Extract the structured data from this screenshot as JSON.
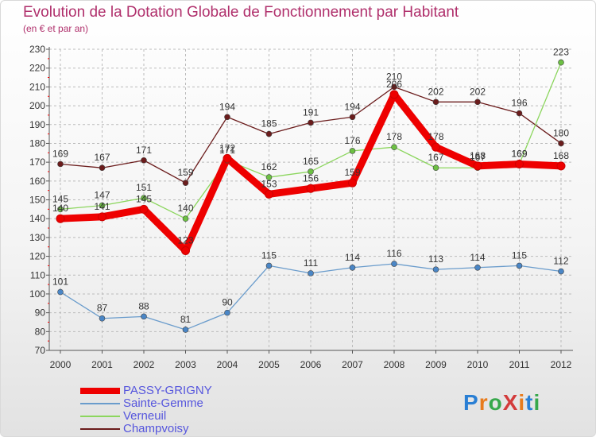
{
  "header": {
    "title": "Evolution de la Dotation Globale de Fonctionnement par Habitant",
    "subtitle": "(en € et par an)"
  },
  "logo": {
    "text": "ProXiti",
    "letter_colors": [
      "#2a7fd4",
      "#e87b1c",
      "#37a84b",
      "#d33b3b",
      "#e87b1c",
      "#2a7fd4",
      "#37a84b"
    ]
  },
  "colors": {
    "title": "#b0306c",
    "legend_text": "#5555dd",
    "axis": "#555555",
    "grid": "#bbbbbb",
    "tick_marks": "#ff0000"
  },
  "chart_data": {
    "type": "line",
    "title": "Evolution de la Dotation Globale de Fonctionnement par Habitant",
    "subtitle": "(en € et par an)",
    "xlabel": "",
    "ylabel": "",
    "x": [
      "2000",
      "2001",
      "2002",
      "2003",
      "2004",
      "2005",
      "2006",
      "2007",
      "2008",
      "2009",
      "2010",
      "2011",
      "2012"
    ],
    "ylim": [
      70,
      230
    ],
    "yticks": [
      70,
      80,
      90,
      100,
      110,
      120,
      130,
      140,
      150,
      160,
      170,
      180,
      190,
      200,
      210,
      220,
      230
    ],
    "grid": "horizontal dashed",
    "legend_position": "bottom-left",
    "series": [
      {
        "name": "Champvoisy",
        "color": "#6b1c1c",
        "marker": "#6b1c1c",
        "values": [
          169,
          167,
          171,
          159,
          194,
          185,
          191,
          194,
          210,
          202,
          202,
          196,
          180
        ]
      },
      {
        "name": "Verneuil",
        "color": "#8cd65e",
        "marker": "#6cc043",
        "values": [
          145,
          147,
          151,
          140,
          171,
          162,
          165,
          176,
          178,
          167,
          167,
          169,
          223
        ]
      },
      {
        "name": "Sainte-Gemme",
        "color": "#6a9ccc",
        "marker": "#4a86c6",
        "values": [
          101,
          87,
          88,
          81,
          90,
          115,
          111,
          114,
          116,
          113,
          114,
          115,
          112
        ]
      },
      {
        "name": "PASSY-GRIGNY",
        "color": "#ee0000",
        "marker": "#ee0000",
        "values": [
          140,
          141,
          145,
          123,
          172,
          153,
          156,
          159,
          206,
          178,
          168,
          169,
          168
        ]
      }
    ]
  }
}
